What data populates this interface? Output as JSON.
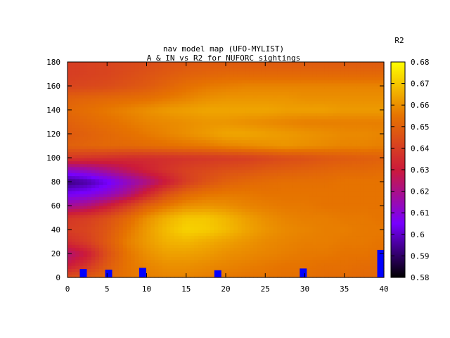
{
  "chart_data": {
    "type": "heatmap",
    "title_line1": "nav model map (UFO-MYLIST)",
    "title_line2": "A & IN vs R2 for NUFORC sightings",
    "colorbar_label": "R2",
    "xlim": [
      0,
      40
    ],
    "ylim": [
      0,
      180
    ],
    "x_ticks": [
      "0",
      "5",
      "10",
      "15",
      "20",
      "25",
      "30",
      "35",
      "40"
    ],
    "y_ticks": [
      "0",
      "20",
      "40",
      "60",
      "80",
      "100",
      "120",
      "140",
      "160",
      "180"
    ],
    "z_range": [
      0.58,
      0.68
    ],
    "z_ticks": [
      "0.58",
      "0.59",
      "0.6",
      "0.61",
      "0.62",
      "0.63",
      "0.64",
      "0.65",
      "0.66",
      "0.67",
      "0.68"
    ],
    "palette": [
      "#000000",
      "#7700ff",
      "#cc1a3a",
      "#e67300",
      "#ffff00"
    ],
    "grid": false,
    "grid_note": "R2 values by y row (bottom to top) and x column (0..40 step 2.5)",
    "x_grid": [
      0,
      2.5,
      5,
      7.5,
      10,
      12.5,
      15,
      17.5,
      20,
      22.5,
      25,
      27.5,
      30,
      32.5,
      35,
      37.5,
      40
    ],
    "y_grid": [
      0,
      10,
      20,
      30,
      40,
      50,
      60,
      70,
      80,
      90,
      100,
      110,
      120,
      130,
      140,
      150,
      160,
      170,
      180
    ],
    "z": [
      [
        0.645,
        0.648,
        0.652,
        0.655,
        0.657,
        0.658,
        0.658,
        0.657,
        0.656,
        0.655,
        0.655,
        0.654,
        0.654,
        0.653,
        0.653,
        0.652,
        0.652
      ],
      [
        0.63,
        0.638,
        0.648,
        0.655,
        0.658,
        0.66,
        0.66,
        0.659,
        0.658,
        0.657,
        0.656,
        0.655,
        0.655,
        0.654,
        0.654,
        0.653,
        0.653
      ],
      [
        0.622,
        0.63,
        0.645,
        0.655,
        0.66,
        0.663,
        0.663,
        0.662,
        0.66,
        0.659,
        0.658,
        0.657,
        0.656,
        0.656,
        0.655,
        0.655,
        0.654
      ],
      [
        0.635,
        0.64,
        0.648,
        0.657,
        0.662,
        0.666,
        0.667,
        0.665,
        0.663,
        0.661,
        0.659,
        0.658,
        0.657,
        0.657,
        0.656,
        0.656,
        0.655
      ],
      [
        0.64,
        0.642,
        0.647,
        0.655,
        0.662,
        0.668,
        0.672,
        0.671,
        0.668,
        0.664,
        0.661,
        0.659,
        0.658,
        0.657,
        0.657,
        0.656,
        0.656
      ],
      [
        0.638,
        0.64,
        0.645,
        0.652,
        0.66,
        0.666,
        0.67,
        0.67,
        0.667,
        0.663,
        0.66,
        0.658,
        0.657,
        0.657,
        0.656,
        0.656,
        0.655
      ],
      [
        0.618,
        0.622,
        0.63,
        0.64,
        0.65,
        0.656,
        0.66,
        0.661,
        0.66,
        0.658,
        0.657,
        0.656,
        0.656,
        0.655,
        0.655,
        0.655,
        0.655
      ],
      [
        0.605,
        0.607,
        0.612,
        0.62,
        0.633,
        0.645,
        0.652,
        0.655,
        0.656,
        0.656,
        0.655,
        0.655,
        0.655,
        0.655,
        0.655,
        0.655,
        0.655
      ],
      [
        0.592,
        0.596,
        0.603,
        0.612,
        0.62,
        0.63,
        0.64,
        0.646,
        0.65,
        0.652,
        0.653,
        0.654,
        0.654,
        0.654,
        0.655,
        0.655,
        0.655
      ],
      [
        0.612,
        0.615,
        0.62,
        0.626,
        0.632,
        0.637,
        0.641,
        0.643,
        0.645,
        0.646,
        0.648,
        0.649,
        0.65,
        0.651,
        0.652,
        0.652,
        0.653
      ],
      [
        0.638,
        0.637,
        0.636,
        0.635,
        0.635,
        0.636,
        0.637,
        0.638,
        0.639,
        0.64,
        0.642,
        0.644,
        0.645,
        0.647,
        0.648,
        0.649,
        0.65
      ],
      [
        0.65,
        0.651,
        0.652,
        0.652,
        0.653,
        0.654,
        0.655,
        0.656,
        0.658,
        0.659,
        0.66,
        0.661,
        0.66,
        0.659,
        0.658,
        0.658,
        0.657
      ],
      [
        0.648,
        0.65,
        0.652,
        0.654,
        0.656,
        0.658,
        0.66,
        0.662,
        0.664,
        0.664,
        0.663,
        0.662,
        0.661,
        0.66,
        0.659,
        0.659,
        0.658
      ],
      [
        0.65,
        0.652,
        0.654,
        0.656,
        0.658,
        0.659,
        0.66,
        0.661,
        0.661,
        0.66,
        0.659,
        0.658,
        0.657,
        0.657,
        0.657,
        0.657,
        0.657
      ],
      [
        0.652,
        0.654,
        0.656,
        0.658,
        0.66,
        0.662,
        0.663,
        0.664,
        0.664,
        0.664,
        0.664,
        0.663,
        0.663,
        0.663,
        0.662,
        0.662,
        0.662
      ],
      [
        0.65,
        0.651,
        0.652,
        0.653,
        0.654,
        0.656,
        0.658,
        0.66,
        0.661,
        0.661,
        0.661,
        0.661,
        0.66,
        0.66,
        0.66,
        0.66,
        0.66
      ],
      [
        0.642,
        0.643,
        0.644,
        0.646,
        0.648,
        0.651,
        0.654,
        0.656,
        0.657,
        0.658,
        0.658,
        0.658,
        0.658,
        0.658,
        0.658,
        0.658,
        0.658
      ],
      [
        0.64,
        0.641,
        0.642,
        0.644,
        0.646,
        0.648,
        0.65,
        0.651,
        0.652,
        0.652,
        0.652,
        0.652,
        0.652,
        0.652,
        0.652,
        0.652,
        0.652
      ],
      [
        0.64,
        0.641,
        0.642,
        0.643,
        0.644,
        0.646,
        0.647,
        0.648,
        0.648,
        0.648,
        0.648,
        0.648,
        0.648,
        0.648,
        0.648,
        0.648,
        0.648
      ]
    ],
    "markers": [
      {
        "x": 2,
        "y_top": 7
      },
      {
        "x": 5.2,
        "y_top": 6.5
      },
      {
        "x": 9.5,
        "y_top": 8
      },
      {
        "x": 19,
        "y_top": 6
      },
      {
        "x": 29.8,
        "y_top": 7.5
      },
      {
        "x": 39.6,
        "y_top": 23
      }
    ],
    "marker_color": "#0000ff"
  }
}
